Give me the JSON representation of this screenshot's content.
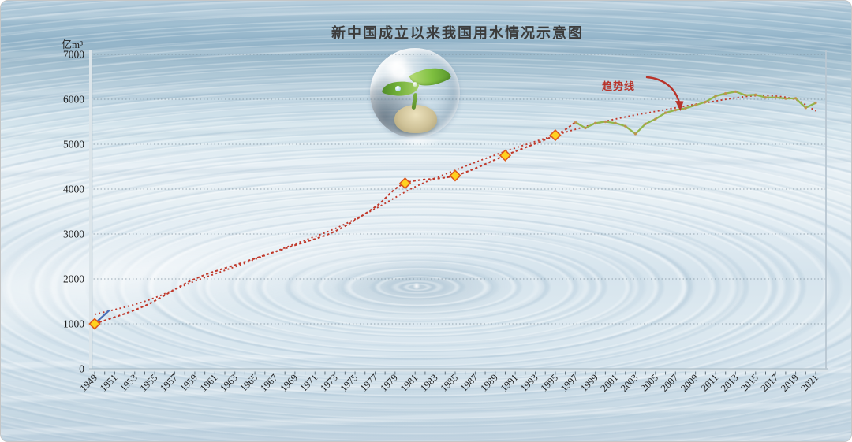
{
  "chart_data": {
    "type": "line",
    "title": "新中国成立以来我国用水情况示意图",
    "ylabel": "亿m³",
    "xlabel": "",
    "ylim": [
      0,
      7000
    ],
    "yticks": [
      0,
      1000,
      2000,
      3000,
      4000,
      5000,
      6000,
      7000
    ],
    "xlim": [
      1949,
      2021
    ],
    "xtick_labels": [
      1949,
      1951,
      1953,
      1955,
      1957,
      1959,
      1961,
      1963,
      1965,
      1967,
      1969,
      1971,
      1973,
      1975,
      1977,
      1979,
      1981,
      1983,
      1985,
      1987,
      1989,
      1991,
      1993,
      1995,
      1997,
      1999,
      2001,
      2003,
      2005,
      2007,
      2009,
      2011,
      2013,
      2015,
      2017,
      2019,
      2021
    ],
    "grid": "horizontal-dotted",
    "legend_position": "none",
    "annotations": [
      {
        "text": "趋势线",
        "color": "#b8332a",
        "arrow": true
      }
    ],
    "series": [
      {
        "id": "water-use-dashed",
        "type": "line",
        "line_style": "dashed",
        "color": "#c0392b",
        "marker": "diamond",
        "marker_fill": "#ffd21f",
        "marker_edge": "#dd5a1c",
        "points": [
          [
            1949,
            1000
          ],
          [
            1954,
            1400
          ],
          [
            1959,
            2000
          ],
          [
            1964,
            2380
          ],
          [
            1969,
            2750
          ],
          [
            1973,
            3060
          ],
          [
            1977,
            3600
          ],
          [
            1980,
            4130
          ],
          [
            1985,
            4300
          ],
          [
            1990,
            4750
          ],
          [
            1995,
            5200
          ],
          [
            1997,
            5490
          ]
        ],
        "marker_years": [
          1949,
          1980,
          1985,
          1990,
          1995
        ]
      },
      {
        "id": "water-use-annual",
        "type": "line",
        "line_style": "solid",
        "color": "#93b54b",
        "point_color": "#c98a4e",
        "x_start": 1997,
        "x_end": 2021,
        "values": [
          5490,
          5360,
          5470,
          5500,
          5470,
          5400,
          5230,
          5450,
          5560,
          5700,
          5760,
          5800,
          5870,
          5940,
          6070,
          6130,
          6170,
          6090,
          6100,
          6040,
          6040,
          6015,
          6020,
          5810,
          5920
        ]
      },
      {
        "id": "trend-line",
        "type": "curve",
        "line_style": "dotted",
        "color": "#c0392b",
        "points": [
          [
            1949,
            1210
          ],
          [
            1954,
            1500
          ],
          [
            1959,
            1950
          ],
          [
            1964,
            2350
          ],
          [
            1969,
            2780
          ],
          [
            1973,
            3120
          ],
          [
            1977,
            3560
          ],
          [
            1981,
            4050
          ],
          [
            1985,
            4420
          ],
          [
            1989,
            4760
          ],
          [
            1993,
            5060
          ],
          [
            1997,
            5330
          ],
          [
            2001,
            5560
          ],
          [
            2005,
            5730
          ],
          [
            2008,
            5850
          ],
          [
            2011,
            5960
          ],
          [
            2013,
            6030
          ],
          [
            2015,
            6080
          ],
          [
            2017,
            6070
          ],
          [
            2019,
            5990
          ],
          [
            2021,
            5740
          ]
        ]
      },
      {
        "id": "start-segment",
        "type": "line",
        "line_style": "solid",
        "color": "#4a70b8",
        "points": [
          [
            1949,
            1000
          ],
          [
            1950.4,
            1290
          ]
        ]
      }
    ]
  },
  "decor": {
    "background": "water ripple photograph",
    "illustration": "green sprout growing from sand inside a transparent bubble"
  }
}
